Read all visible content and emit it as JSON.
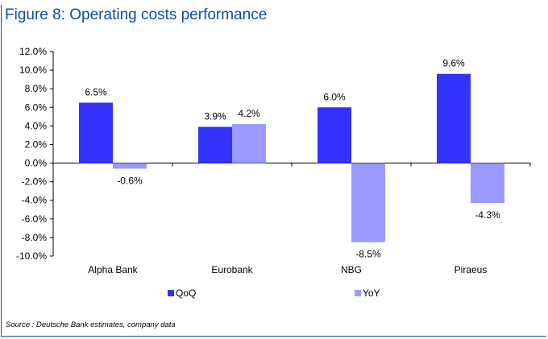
{
  "title": "Figure 8: Operating costs performance",
  "source": "Source : Deutsche Bank estimates, company data",
  "colors": {
    "qoq": "#3333ff",
    "yoy": "#9999ff",
    "accent": "#0a4fa8"
  },
  "chart_data": {
    "type": "bar",
    "title": "Figure 8: Operating costs performance",
    "xlabel": "",
    "ylabel": "",
    "ylim": [
      -10,
      12
    ],
    "ytick_step": 2,
    "ytick_labels": [
      "12.0%",
      "10.0%",
      "8.0%",
      "6.0%",
      "4.0%",
      "2.0%",
      "0.0%",
      "-2.0%",
      "-4.0%",
      "-6.0%",
      "-8.0%",
      "-10.0%"
    ],
    "categories": [
      "Alpha Bank",
      "Eurobank",
      "NBG",
      "Piraeus"
    ],
    "series": [
      {
        "name": "QoQ",
        "values": [
          6.5,
          3.9,
          6.0,
          9.6
        ],
        "labels": [
          "6.5%",
          "3.9%",
          "6.0%",
          "9.6%"
        ]
      },
      {
        "name": "YoY",
        "values": [
          -0.6,
          4.2,
          -8.5,
          -4.3
        ],
        "labels": [
          "-0.6%",
          "4.2%",
          "-8.5%",
          "-4.3%"
        ]
      }
    ],
    "legend": "bottom",
    "grid": false
  }
}
